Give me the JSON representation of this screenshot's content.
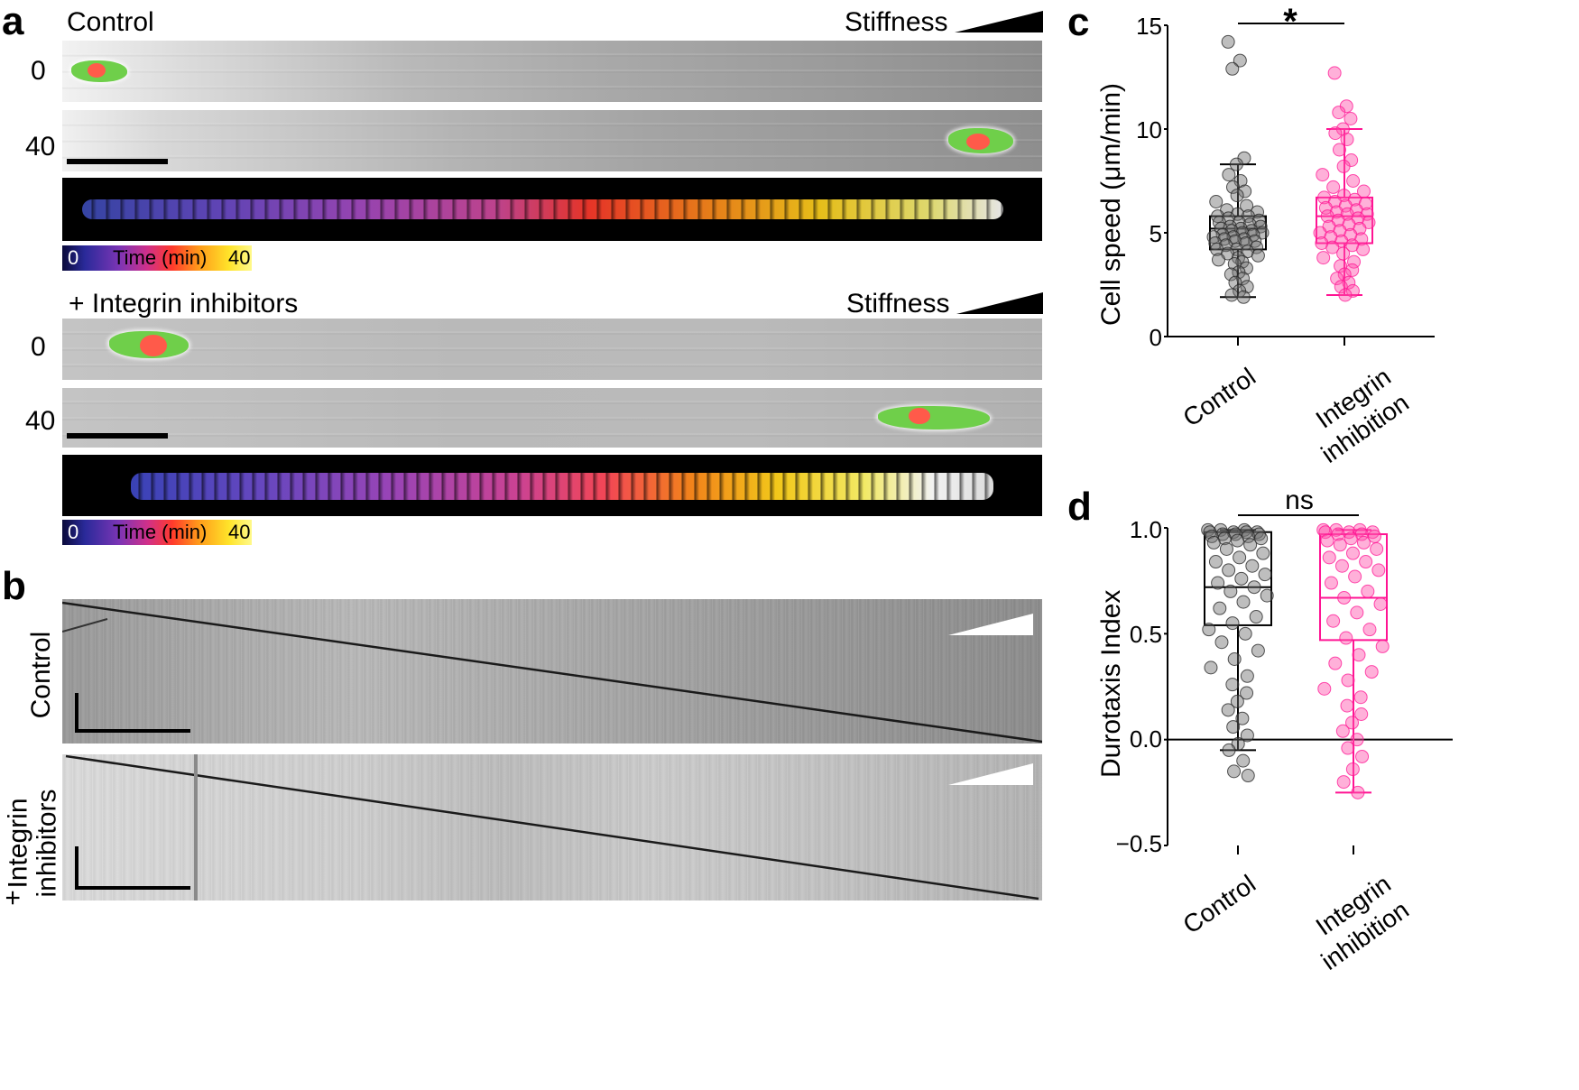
{
  "panels": {
    "a": "a",
    "b": "b",
    "c": "c",
    "d": "d"
  },
  "panel_a": {
    "control_label": "Control",
    "stiffness_label": "Stiffness",
    "time_0": "0",
    "time_40": "40",
    "integrin_label": "+  Integrin inhibitors",
    "colorbar_start": "0",
    "colorbar_title": "Time (min)",
    "colorbar_end": "40"
  },
  "panel_b": {
    "control_label": "Control",
    "integrin_label_line1": "Integrin",
    "integrin_label_line2": "inhibitors",
    "plus": "+"
  },
  "colors": {
    "control": "#000000",
    "integrin": "#ff1493"
  },
  "chart_data": [
    {
      "type": "box",
      "panel": "c",
      "ylabel": "Cell speed (μm/min)",
      "ylim": [
        0,
        15
      ],
      "yticks": [
        "0",
        "5",
        "10",
        "15"
      ],
      "categories": [
        "Control",
        "Integrin inhibition"
      ],
      "significance": "*",
      "series": [
        {
          "name": "Control",
          "min": 1.9,
          "q1": 4.2,
          "median": 5.2,
          "q3": 5.8,
          "max": 8.3,
          "points": [
            14.2,
            13.3,
            12.9,
            8.6,
            8.3,
            7.8,
            7.5,
            7.2,
            7.0,
            6.8,
            6.5,
            6.3,
            6.1,
            6.0,
            5.9,
            5.8,
            5.8,
            5.7,
            5.6,
            5.5,
            5.5,
            5.4,
            5.3,
            5.3,
            5.2,
            5.2,
            5.1,
            5.1,
            5.0,
            5.0,
            4.9,
            4.9,
            4.8,
            4.8,
            4.7,
            4.7,
            4.6,
            4.6,
            4.5,
            4.5,
            4.4,
            4.3,
            4.2,
            4.2,
            4.1,
            4.0,
            3.9,
            3.8,
            3.7,
            3.6,
            3.5,
            3.3,
            3.1,
            3.0,
            2.8,
            2.6,
            2.4,
            2.2,
            2.0,
            1.9
          ]
        },
        {
          "name": "Integrin inhibition",
          "min": 2.0,
          "q1": 4.5,
          "median": 5.8,
          "q3": 6.7,
          "max": 10.0,
          "points": [
            12.7,
            11.1,
            10.8,
            10.5,
            10.0,
            9.8,
            9.5,
            9.0,
            8.5,
            8.2,
            7.8,
            7.5,
            7.2,
            7.0,
            6.8,
            6.7,
            6.6,
            6.5,
            6.4,
            6.3,
            6.2,
            6.1,
            6.0,
            5.9,
            5.9,
            5.8,
            5.7,
            5.6,
            5.5,
            5.4,
            5.3,
            5.2,
            5.1,
            5.0,
            4.9,
            4.8,
            4.7,
            4.6,
            4.5,
            4.4,
            4.3,
            4.2,
            4.0,
            3.8,
            3.6,
            3.4,
            3.2,
            3.0,
            2.8,
            2.6,
            2.4,
            2.2,
            2.0
          ]
        }
      ]
    },
    {
      "type": "box",
      "panel": "d",
      "ylabel": "Durotaxis Index",
      "ylim": [
        -0.5,
        1.0
      ],
      "yticks": [
        "−0.5",
        "0.0",
        "0.5",
        "1.0"
      ],
      "categories": [
        "Control",
        "Integrin inhibition"
      ],
      "significance": "ns",
      "series": [
        {
          "name": "Control",
          "min": -0.05,
          "q1": 0.54,
          "median": 0.72,
          "q3": 0.98,
          "max": 0.99,
          "points": [
            0.99,
            0.99,
            0.99,
            0.98,
            0.98,
            0.98,
            0.98,
            0.97,
            0.97,
            0.97,
            0.96,
            0.96,
            0.95,
            0.95,
            0.94,
            0.93,
            0.92,
            0.9,
            0.88,
            0.86,
            0.84,
            0.82,
            0.8,
            0.78,
            0.76,
            0.74,
            0.72,
            0.7,
            0.68,
            0.65,
            0.62,
            0.58,
            0.55,
            0.52,
            0.5,
            0.46,
            0.42,
            0.38,
            0.34,
            0.3,
            0.26,
            0.22,
            0.18,
            0.14,
            0.1,
            0.06,
            0.02,
            -0.02,
            -0.05,
            -0.1,
            -0.15,
            -0.17
          ]
        },
        {
          "name": "Integrin inhibition",
          "min": -0.25,
          "q1": 0.47,
          "median": 0.67,
          "q3": 0.97,
          "max": 0.99,
          "points": [
            0.99,
            0.99,
            0.99,
            0.98,
            0.98,
            0.98,
            0.97,
            0.97,
            0.96,
            0.95,
            0.94,
            0.93,
            0.92,
            0.9,
            0.88,
            0.86,
            0.84,
            0.82,
            0.8,
            0.77,
            0.74,
            0.7,
            0.67,
            0.64,
            0.6,
            0.56,
            0.52,
            0.48,
            0.44,
            0.4,
            0.36,
            0.32,
            0.28,
            0.24,
            0.2,
            0.16,
            0.12,
            0.08,
            0.04,
            0.0,
            -0.04,
            -0.08,
            -0.14,
            -0.2,
            -0.25
          ]
        }
      ]
    }
  ]
}
